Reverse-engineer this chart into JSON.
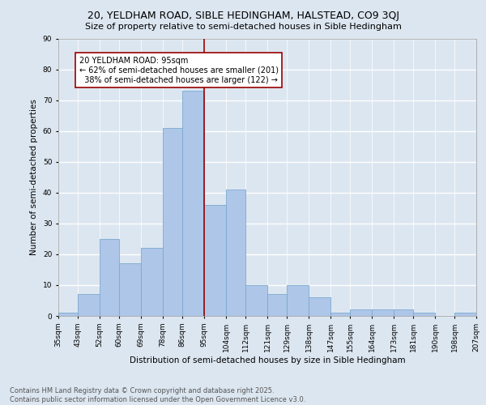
{
  "title": "20, YELDHAM ROAD, SIBLE HEDINGHAM, HALSTEAD, CO9 3QJ",
  "subtitle": "Size of property relative to semi-detached houses in Sible Hedingham",
  "xlabel": "Distribution of semi-detached houses by size in Sible Hedingham",
  "ylabel": "Number of semi-detached properties",
  "bins": [
    35,
    43,
    52,
    60,
    69,
    78,
    86,
    95,
    104,
    112,
    121,
    129,
    138,
    147,
    155,
    164,
    173,
    181,
    190,
    198,
    207
  ],
  "counts": [
    1,
    7,
    25,
    17,
    22,
    61,
    73,
    36,
    41,
    10,
    7,
    10,
    6,
    1,
    2,
    2,
    2,
    1,
    0,
    1
  ],
  "bar_color": "#aec6e8",
  "bar_edge_color": "#7aaad0",
  "property_size": 95,
  "annotation_line_color": "#990000",
  "annotation_text": "20 YELDHAM ROAD: 95sqm\n← 62% of semi-detached houses are smaller (201)\n  38% of semi-detached houses are larger (122) →",
  "annotation_box_color": "white",
  "annotation_box_edge_color": "#990000",
  "background_color": "#dce6f0",
  "grid_color": "white",
  "ylim": [
    0,
    90
  ],
  "yticks": [
    0,
    10,
    20,
    30,
    40,
    50,
    60,
    70,
    80,
    90
  ],
  "footer_text": "Contains HM Land Registry data © Crown copyright and database right 2025.\nContains public sector information licensed under the Open Government Licence v3.0.",
  "tick_labels": [
    "35sqm",
    "43sqm",
    "52sqm",
    "60sqm",
    "69sqm",
    "78sqm",
    "86sqm",
    "95sqm",
    "104sqm",
    "112sqm",
    "121sqm",
    "129sqm",
    "138sqm",
    "147sqm",
    "155sqm",
    "164sqm",
    "173sqm",
    "181sqm",
    "190sqm",
    "198sqm",
    "207sqm"
  ],
  "title_fontsize": 9,
  "subtitle_fontsize": 8,
  "axis_label_fontsize": 7.5,
  "tick_fontsize": 6.5,
  "annotation_fontsize": 7,
  "footer_fontsize": 6
}
